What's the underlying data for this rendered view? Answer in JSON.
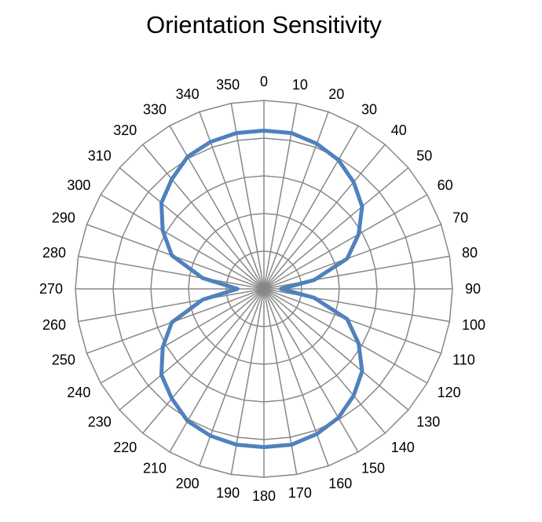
{
  "chart_data": {
    "type": "radar",
    "title": "Orientation Sensitivity",
    "categories": [
      "0",
      "10",
      "20",
      "30",
      "40",
      "50",
      "60",
      "70",
      "80",
      "90",
      "100",
      "110",
      "120",
      "130",
      "140",
      "150",
      "160",
      "170",
      "180",
      "190",
      "200",
      "210",
      "220",
      "230",
      "240",
      "250",
      "260",
      "270",
      "280",
      "290",
      "300",
      "310",
      "320",
      "330",
      "340",
      "350"
    ],
    "series": [
      {
        "name": "Sensitivity",
        "color": "#4f81bd",
        "values": [
          0.84,
          0.84,
          0.82,
          0.79,
          0.74,
          0.68,
          0.58,
          0.47,
          0.27,
          0.09,
          0.27,
          0.47,
          0.58,
          0.68,
          0.74,
          0.79,
          0.82,
          0.84,
          0.84,
          0.84,
          0.83,
          0.81,
          0.76,
          0.71,
          0.62,
          0.52,
          0.33,
          0.14,
          0.33,
          0.52,
          0.62,
          0.71,
          0.76,
          0.81,
          0.83,
          0.84
        ]
      }
    ],
    "rlim": [
      0,
      1
    ],
    "rings": 5,
    "grid": true,
    "legend": "none",
    "grid_color": "#888888"
  }
}
